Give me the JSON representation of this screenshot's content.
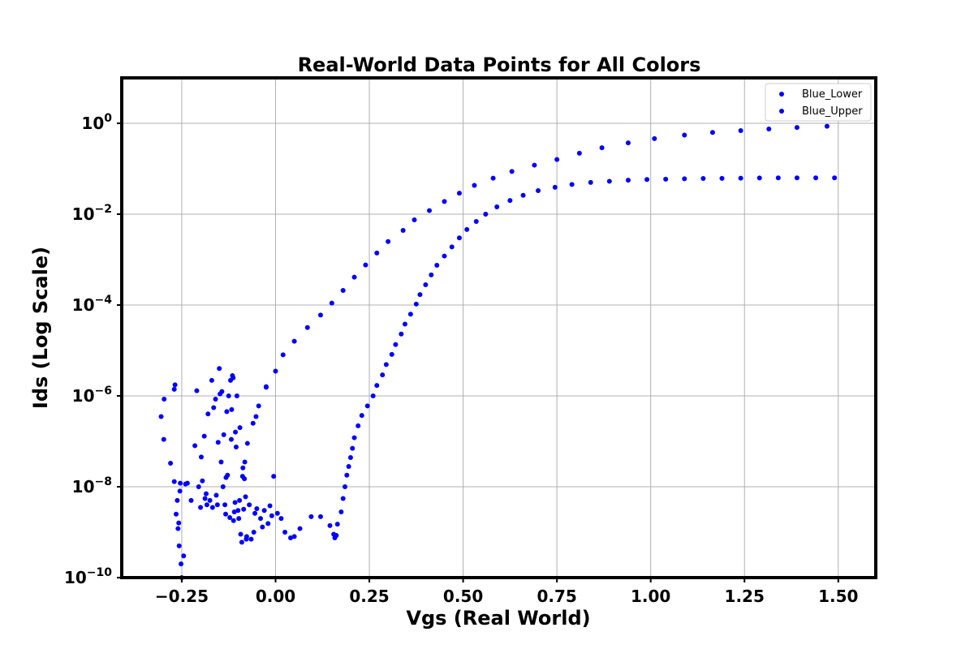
{
  "chart_data": {
    "type": "scatter",
    "title": "Real-World Data Points for All Colors",
    "xlabel": "Vgs (Real World)",
    "ylabel": "Ids (Log Scale)",
    "xlim": [
      -0.41,
      1.6
    ],
    "ylim": [
      1e-10,
      10
    ],
    "yscale": "log",
    "grid": true,
    "legend_position": "top-right",
    "marker_color": "#0000ff",
    "x_ticks": [
      -0.25,
      0.0,
      0.25,
      0.5,
      0.75,
      1.0,
      1.25,
      1.5
    ],
    "x_tick_labels": [
      "−0.25",
      "0.00",
      "0.25",
      "0.50",
      "0.75",
      "1.00",
      "1.25",
      "1.50"
    ],
    "y_ticks": [
      1e-10,
      1e-08,
      1e-06,
      0.0001,
      0.01,
      1
    ],
    "y_tick_labels": [
      {
        "base": "10",
        "exp": "−10"
      },
      {
        "base": "10",
        "exp": "−8"
      },
      {
        "base": "10",
        "exp": "−6"
      },
      {
        "base": "10",
        "exp": "−4"
      },
      {
        "base": "10",
        "exp": "−2"
      },
      {
        "base": "10",
        "exp": "0"
      }
    ],
    "series": [
      {
        "name": "Blue_Lower",
        "points": [
          [
            -0.305,
            3.5e-07
          ],
          [
            -0.298,
            1.1e-07
          ],
          [
            -0.297,
            8.5e-07
          ],
          [
            -0.28,
            3.3e-08
          ],
          [
            -0.27,
            1.4e-06
          ],
          [
            -0.268,
            1.75e-06
          ],
          [
            -0.27,
            1.3e-08
          ],
          [
            -0.265,
            2.5e-09
          ],
          [
            -0.262,
            5e-09
          ],
          [
            -0.26,
            1.2e-09
          ],
          [
            -0.258,
            1.6e-09
          ],
          [
            -0.257,
            5e-10
          ],
          [
            -0.255,
            8e-09
          ],
          [
            -0.254,
            1.2e-08
          ],
          [
            -0.252,
            2e-10
          ],
          [
            -0.25,
            1e-10
          ],
          [
            -0.245,
            3e-10
          ],
          [
            -0.24,
            1.15e-08
          ],
          [
            -0.235,
            1.2e-08
          ],
          [
            -0.225,
            5e-09
          ],
          [
            -0.215,
            8e-08
          ],
          [
            -0.21,
            1.3e-06
          ],
          [
            -0.205,
            1e-08
          ],
          [
            -0.2,
            3.5e-09
          ],
          [
            -0.198,
            4.5e-08
          ],
          [
            -0.195,
            1.35e-08
          ],
          [
            -0.19,
            1.3e-07
          ],
          [
            -0.188,
            5.5e-09
          ],
          [
            -0.185,
            7e-09
          ],
          [
            -0.183,
            4e-09
          ],
          [
            -0.18,
            4e-07
          ],
          [
            -0.175,
            5e-09
          ],
          [
            -0.17,
            2.2e-06
          ],
          [
            -0.168,
            3.5e-09
          ],
          [
            -0.165,
            5.5e-07
          ],
          [
            -0.16,
            8.5e-07
          ],
          [
            -0.158,
            6.5e-09
          ],
          [
            -0.155,
            4e-09
          ],
          [
            -0.153,
            9.5e-08
          ],
          [
            -0.15,
            4e-06
          ],
          [
            -0.148,
            1.1e-06
          ],
          [
            -0.145,
            3.5e-08
          ],
          [
            -0.143,
            1.25e-06
          ],
          [
            -0.14,
            1e-08
          ],
          [
            -0.138,
            1.4e-07
          ],
          [
            -0.135,
            4e-09
          ],
          [
            -0.133,
            2.5e-09
          ],
          [
            -0.132,
            1.6e-08
          ],
          [
            -0.13,
            4.5e-07
          ],
          [
            -0.128,
            1.8e-08
          ],
          [
            -0.125,
            1e-06
          ],
          [
            -0.122,
            2.1e-09
          ],
          [
            -0.12,
            2.2e-06
          ],
          [
            -0.118,
            1.1e-07
          ],
          [
            -0.117,
            5e-07
          ],
          [
            -0.115,
            2.8e-06
          ],
          [
            -0.113,
            2.5e-06
          ],
          [
            -0.112,
            1.8e-09
          ],
          [
            -0.11,
            2.8e-09
          ],
          [
            -0.108,
            4.5e-09
          ],
          [
            -0.107,
            1.6e-07
          ],
          [
            -0.105,
            7.5e-08
          ],
          [
            -0.103,
            1e-06
          ],
          [
            -0.1,
            3e-09
          ],
          [
            -0.098,
            2e-09
          ],
          [
            -0.096,
            5e-09
          ],
          [
            -0.095,
            2e-07
          ],
          [
            -0.093,
            9e-10
          ],
          [
            -0.09,
            6e-10
          ],
          [
            -0.088,
            1.7e-08
          ],
          [
            -0.087,
            2.6e-08
          ],
          [
            -0.085,
            3.2e-09
          ],
          [
            -0.083,
            1.5e-08
          ],
          [
            -0.082,
            3.5e-08
          ],
          [
            -0.08,
            6e-09
          ],
          [
            -0.078,
            7e-10
          ],
          [
            -0.077,
            8e-10
          ],
          [
            -0.075,
            9e-08
          ],
          [
            -0.07,
            4e-09
          ],
          [
            -0.065,
            7e-10
          ],
          [
            -0.06,
            2.5e-07
          ],
          [
            -0.058,
            1e-09
          ],
          [
            -0.055,
            2.6e-09
          ],
          [
            -0.052,
            3.5e-07
          ],
          [
            -0.05,
            3.3e-09
          ],
          [
            -0.045,
            6e-07
          ],
          [
            -0.04,
            2e-09
          ],
          [
            -0.035,
            1.3e-09
          ],
          [
            -0.03,
            3e-09
          ],
          [
            -0.025,
            1.55e-06
          ],
          [
            -0.02,
            1.55e-09
          ],
          [
            -0.015,
            3.8e-09
          ],
          [
            -0.01,
            2.3e-09
          ],
          [
            -0.005,
            1.7e-08
          ],
          [
            0.0,
            3.5e-06
          ],
          [
            0.005,
            2.6e-09
          ],
          [
            0.015,
            2e-09
          ],
          [
            0.025,
            1e-09
          ],
          [
            0.04,
            7.5e-10
          ],
          [
            0.05,
            8e-10
          ],
          [
            0.065,
            1.2e-09
          ],
          [
            0.095,
            2.2e-09
          ],
          [
            0.12,
            2.2e-09
          ],
          [
            0.145,
            1.4e-09
          ],
          [
            0.155,
            9e-10
          ],
          [
            0.158,
            7.5e-10
          ],
          [
            0.162,
            8.5e-10
          ],
          [
            0.165,
            1.5e-09
          ],
          [
            0.175,
            2.8e-09
          ],
          [
            0.18,
            5.5e-09
          ],
          [
            0.185,
            1e-08
          ],
          [
            0.19,
            1.8e-08
          ],
          [
            0.195,
            2.8e-08
          ],
          [
            0.2,
            4.4e-08
          ],
          [
            0.205,
            7e-08
          ],
          [
            0.21,
            1.2e-07
          ],
          [
            0.22,
            2.2e-07
          ],
          [
            0.23,
            3.7e-07
          ],
          [
            0.245,
            6e-07
          ],
          [
            0.26,
            1e-06
          ],
          [
            0.27,
            1.7e-06
          ],
          [
            0.285,
            2.9e-06
          ],
          [
            0.295,
            4.9e-06
          ],
          [
            0.31,
            8.2e-06
          ],
          [
            0.32,
            1.35e-05
          ],
          [
            0.335,
            2.3e-05
          ],
          [
            0.345,
            3.8e-05
          ],
          [
            0.36,
            6.3e-05
          ],
          [
            0.375,
            0.000105
          ],
          [
            0.385,
            0.00017
          ],
          [
            0.4,
            0.00028
          ],
          [
            0.415,
            0.00046
          ],
          [
            0.43,
            0.00075
          ],
          [
            0.45,
            0.0012
          ],
          [
            0.47,
            0.0019
          ],
          [
            0.49,
            0.003
          ],
          [
            0.51,
            0.0046
          ],
          [
            0.535,
            0.0069
          ],
          [
            0.56,
            0.01
          ],
          [
            0.59,
            0.0145
          ],
          [
            0.625,
            0.02
          ],
          [
            0.66,
            0.026
          ],
          [
            0.7,
            0.033
          ],
          [
            0.745,
            0.039
          ],
          [
            0.79,
            0.045
          ],
          [
            0.84,
            0.05
          ],
          [
            0.89,
            0.053
          ],
          [
            0.94,
            0.056
          ],
          [
            0.99,
            0.058
          ],
          [
            1.04,
            0.059
          ],
          [
            1.09,
            0.06
          ],
          [
            1.14,
            0.061
          ],
          [
            1.19,
            0.0615
          ],
          [
            1.24,
            0.062
          ],
          [
            1.29,
            0.0625
          ],
          [
            1.34,
            0.063
          ],
          [
            1.39,
            0.063
          ],
          [
            1.44,
            0.063
          ],
          [
            1.49,
            0.063
          ]
        ]
      },
      {
        "name": "Blue_Upper",
        "points": [
          [
            -0.025,
            1.6e-06
          ],
          [
            0.02,
            8e-06
          ],
          [
            0.05,
            1.6e-05
          ],
          [
            0.085,
            3.2e-05
          ],
          [
            0.12,
            6e-05
          ],
          [
            0.15,
            0.00011
          ],
          [
            0.18,
            0.00021
          ],
          [
            0.21,
            0.00041
          ],
          [
            0.24,
            0.00076
          ],
          [
            0.27,
            0.0014
          ],
          [
            0.3,
            0.0025
          ],
          [
            0.34,
            0.0044
          ],
          [
            0.37,
            0.0075
          ],
          [
            0.41,
            0.012
          ],
          [
            0.45,
            0.019
          ],
          [
            0.49,
            0.029
          ],
          [
            0.53,
            0.043
          ],
          [
            0.58,
            0.062
          ],
          [
            0.63,
            0.087
          ],
          [
            0.69,
            0.12
          ],
          [
            0.75,
            0.16
          ],
          [
            0.81,
            0.22
          ],
          [
            0.87,
            0.29
          ],
          [
            0.94,
            0.37
          ],
          [
            1.01,
            0.46
          ],
          [
            1.09,
            0.55
          ],
          [
            1.165,
            0.63
          ],
          [
            1.24,
            0.69
          ],
          [
            1.315,
            0.75
          ],
          [
            1.39,
            0.81
          ],
          [
            1.47,
            0.86
          ]
        ]
      }
    ]
  }
}
